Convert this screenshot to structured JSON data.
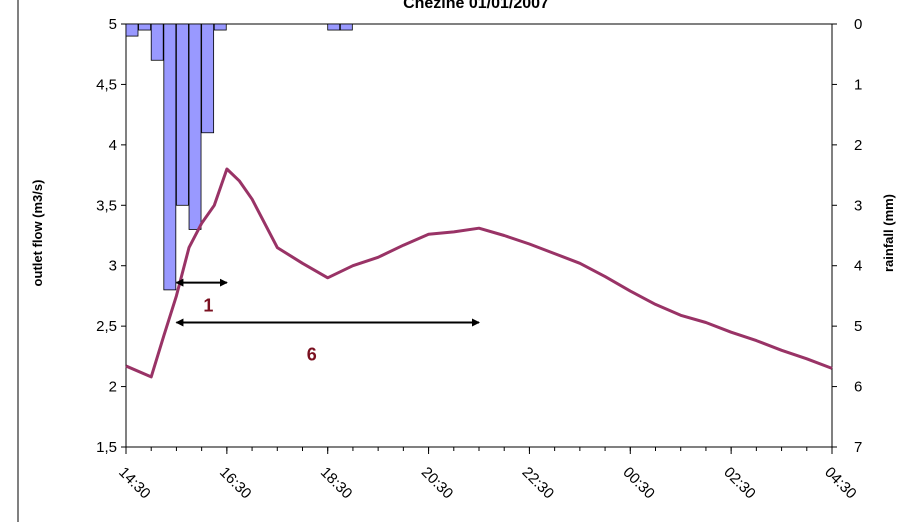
{
  "chart_data": {
    "type": "bar+line",
    "title": "Chezine 01/01/2007",
    "x_ticks": [
      "14:30",
      "16:30",
      "18:30",
      "20:30",
      "22:30",
      "00:30",
      "02:30",
      "04:30"
    ],
    "y_left": {
      "label": "outlet flow (m3/s)",
      "min": 1.5,
      "max": 5,
      "ticks": [
        "1,5",
        "2",
        "2,5",
        "3",
        "3,5",
        "4",
        "4,5",
        "5"
      ]
    },
    "y_right": {
      "label": "rainfall (mm)",
      "min": 0,
      "max": 7,
      "inverted": true,
      "ticks": [
        "0",
        "1",
        "2",
        "3",
        "4",
        "5",
        "6",
        "7"
      ]
    },
    "rainfall_series": {
      "color": "#9999ff",
      "time_hours": [
        14.5,
        14.75,
        15.0,
        15.25,
        15.5,
        15.75,
        16.0,
        16.25,
        18.5,
        18.75
      ],
      "rainfall_mm": [
        0.2,
        0.1,
        0.6,
        4.4,
        3.0,
        3.4,
        1.8,
        0.1,
        0.1,
        0.1
      ]
    },
    "flow_series": {
      "color": "#993366",
      "time_hours": [
        14.5,
        15.0,
        15.25,
        15.5,
        15.75,
        16.0,
        16.25,
        16.5,
        16.75,
        17.0,
        17.5,
        18.0,
        18.5,
        19.0,
        19.5,
        20.0,
        20.5,
        21.0,
        21.5,
        22.0,
        22.5,
        23.0,
        23.5,
        24.0,
        24.5,
        25.0,
        25.5,
        26.0,
        26.5,
        27.0,
        27.5,
        28.0,
        28.5
      ],
      "flow_m3s": [
        2.17,
        2.08,
        2.42,
        2.75,
        3.15,
        3.35,
        3.5,
        3.8,
        3.7,
        3.55,
        3.15,
        3.02,
        2.9,
        3.0,
        3.07,
        3.17,
        3.26,
        3.28,
        3.31,
        3.25,
        3.18,
        3.1,
        3.02,
        2.91,
        2.79,
        2.68,
        2.59,
        2.53,
        2.45,
        2.38,
        2.3,
        2.23,
        2.15
      ]
    },
    "annotations": [
      {
        "label": "1",
        "from_hours": 15.5,
        "to_hours": 16.5,
        "flow_level": 2.86
      },
      {
        "label": "6",
        "from_hours": 15.5,
        "to_hours": 21.5,
        "flow_level": 2.53
      }
    ]
  }
}
